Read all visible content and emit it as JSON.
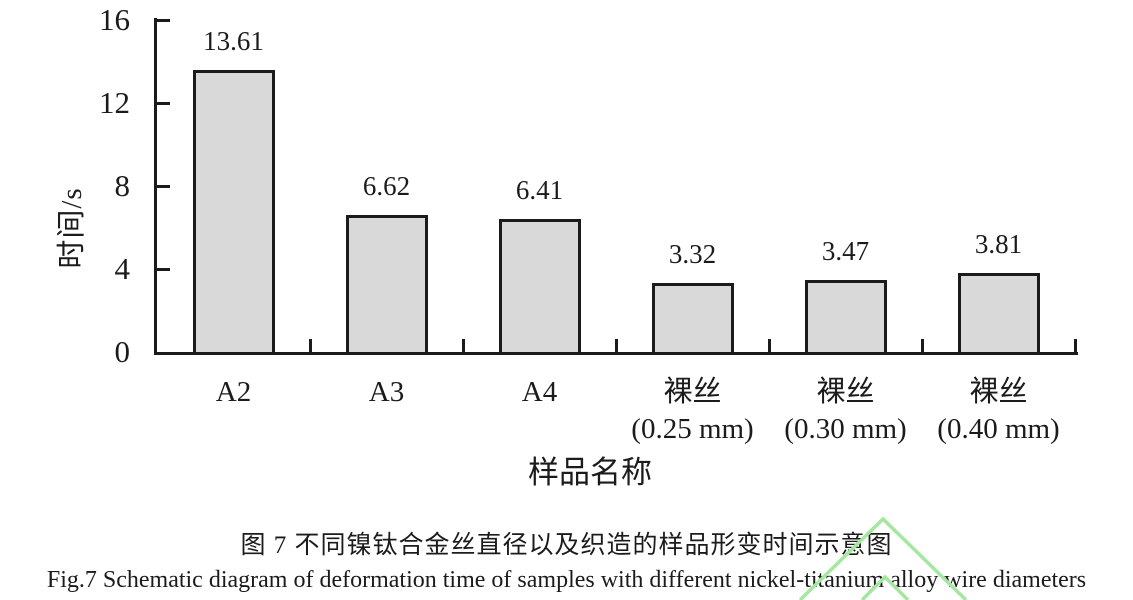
{
  "figure": {
    "caption_zh": "图 7 不同镍钛合金丝直径以及织造的样品形变时间示意图",
    "caption_en": "Fig.7 Schematic diagram of deformation time of samples with different nickel-titanium alloy wire diameters"
  },
  "chart_data": {
    "type": "bar",
    "title": "",
    "xlabel": "样品名称",
    "ylabel": "时间/s",
    "categories": [
      "A2",
      "A3",
      "A4",
      "裸丝 (0.25 mm)",
      "裸丝 (0.30 mm)",
      "裸丝 (0.40 mm)"
    ],
    "category_lines": [
      [
        "A2"
      ],
      [
        "A3"
      ],
      [
        "A4"
      ],
      [
        "裸丝",
        "(0.25 mm)"
      ],
      [
        "裸丝",
        "(0.30 mm)"
      ],
      [
        "裸丝",
        "(0.40 mm)"
      ]
    ],
    "values": [
      13.61,
      6.62,
      6.41,
      3.32,
      3.47,
      3.81
    ],
    "value_labels": [
      "13.61",
      "6.62",
      "6.41",
      "3.32",
      "3.47",
      "3.81"
    ],
    "ylim": [
      0,
      16
    ],
    "yticks": [
      0,
      4,
      8,
      12,
      16
    ],
    "grid": false,
    "legend": "none",
    "bar_fill": "#d9d9d9",
    "bar_border": "#1b1b1b",
    "axis_color": "#1b1b1b",
    "text_color": "#1b1b1b",
    "background": "#ffffff",
    "watermark_color": "#a4e7a0"
  }
}
